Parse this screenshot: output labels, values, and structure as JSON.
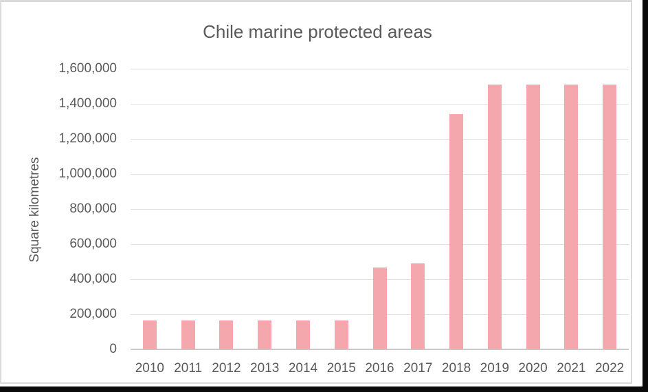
{
  "chart_data": {
    "type": "bar",
    "title": "Chile marine protected areas",
    "xlabel": "",
    "ylabel": "Square kilometres",
    "categories": [
      "2010",
      "2011",
      "2012",
      "2013",
      "2014",
      "2015",
      "2016",
      "2017",
      "2018",
      "2019",
      "2020",
      "2021",
      "2022"
    ],
    "values": [
      165000,
      165000,
      165000,
      165000,
      165000,
      165000,
      465000,
      490000,
      1340000,
      1510000,
      1510000,
      1510000,
      1510000
    ],
    "ylim": [
      0,
      1600000
    ],
    "ytick_step": 200000,
    "ytick_labels": [
      "0",
      "200,000",
      "400,000",
      "600,000",
      "800,000",
      "1,000,000",
      "1,200,000",
      "1,400,000",
      "1,600,000"
    ],
    "grid": true,
    "legend": false,
    "bar_color": "#F4A7AD",
    "text_color": "#595959",
    "gridline_color": "#E2E2E2",
    "axis_line_color": "#C9C9C9",
    "frame_border_color": "#DBDBDB",
    "image_edge_color": "#0A0A0A"
  }
}
